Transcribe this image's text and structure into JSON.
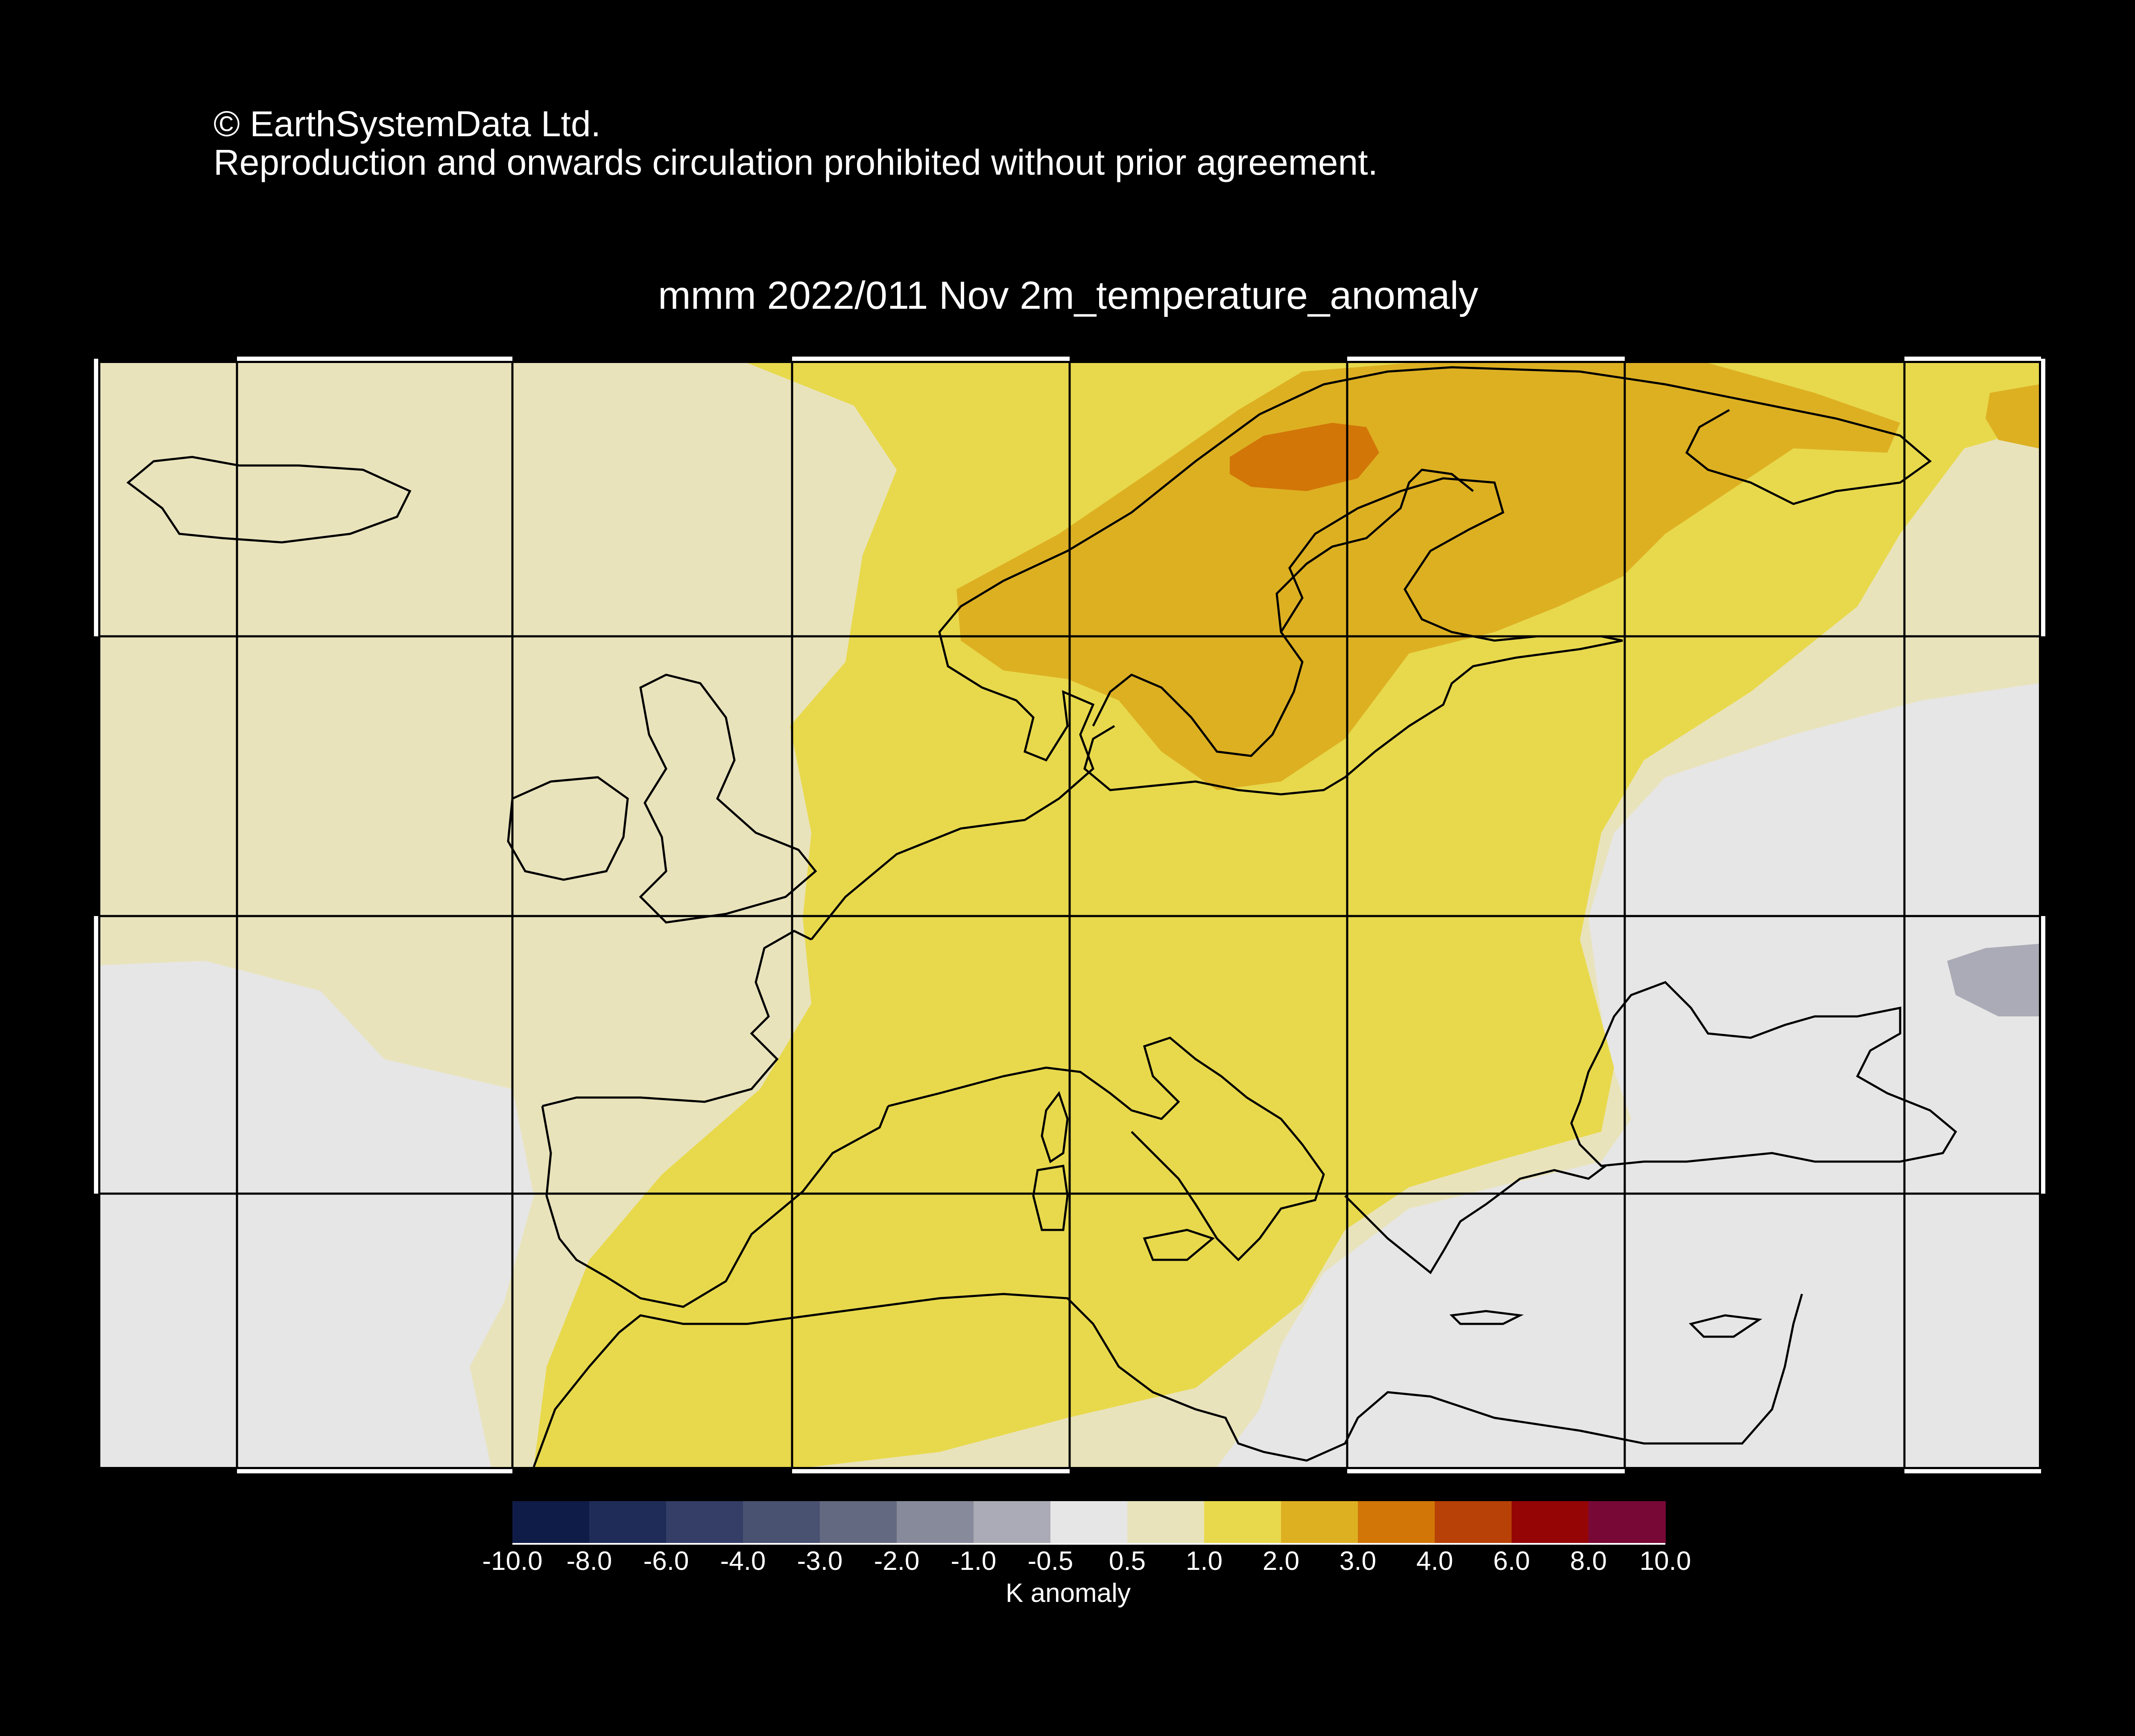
{
  "header": {
    "copyright_line1": "© EarthSystemData Ltd.",
    "copyright_line2": "Reproduction and onwards circulation prohibited without prior agreement."
  },
  "map": {
    "title": "mmm 2022/011 Nov 2m_temperature_anomaly",
    "region": "Europe",
    "background_color": "#e8e8e8",
    "coastline_color": "#000000"
  },
  "colorbar": {
    "units": "K anomaly",
    "tick_labels": [
      "-10.0",
      "-8.0",
      "-6.0",
      "-4.0",
      "-3.0",
      "-2.0",
      "-1.0",
      "-0.5",
      "0.5",
      "1.0",
      "2.0",
      "3.0",
      "4.0",
      "6.0",
      "8.0",
      "10.0"
    ],
    "colors": [
      "#101c48",
      "#1f2c58",
      "#343e66",
      "#4a5272",
      "#636980",
      "#878a9a",
      "#aaabb6",
      "#e6e6e6",
      "#e9e3bc",
      "#e8d94c",
      "#ddb022",
      "#d27608",
      "#b74106",
      "#960506",
      "#780836"
    ]
  }
}
